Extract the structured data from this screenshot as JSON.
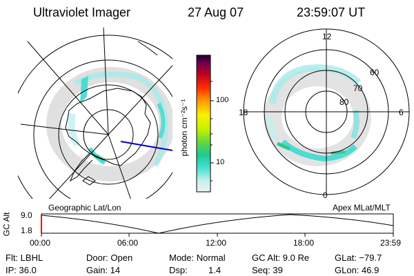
{
  "header": {
    "instrument": "Ultraviolet Imager",
    "date": "27 Aug 07",
    "time": "23:59:07 UT"
  },
  "colorbar": {
    "unit_label": "photon cm⁻²s⁻¹",
    "ticks": [
      "100",
      "10"
    ]
  },
  "left_map": {
    "caption": "Geographic Lat/Lon"
  },
  "right_map": {
    "caption": "Apex MLat/MLT",
    "clock_labels": {
      "top": "12",
      "left": "18",
      "right": "6",
      "bottom": "0"
    },
    "lat_labels": [
      "60",
      "70",
      "80"
    ]
  },
  "altitude_plot": {
    "ylabel": "GC Alt",
    "y_ticks": [
      "9.0",
      "1.8"
    ],
    "x_ticks": [
      "00:00",
      "06:00",
      "12:00",
      "18:00",
      "23:59"
    ]
  },
  "info": {
    "row1": {
      "filter": "Flt: LBHL",
      "door": "Door: Open",
      "mode": "Mode: Normal",
      "gc_alt": "GC Alt: 9.0 Re",
      "glat": "GLat: −79.7"
    },
    "row2": {
      "ip": "IP: 36.0",
      "gain": "Gain: 14",
      "dsp_label": "Dsp:",
      "dsp_value": "1.4",
      "seq": "Seq: 39",
      "glon": "GLon:  46.9"
    }
  },
  "colors": {
    "colorbar_stops": [
      "#e8e8e8",
      "#b0f0f0",
      "#40e0d0",
      "#30c890",
      "#80e020",
      "#e8f000",
      "#ffa000",
      "#ff4000",
      "#c00020",
      "#800040",
      "#200030"
    ],
    "aurora": "#40d8d0",
    "track": "#0000c0",
    "marker": "#ff0000"
  }
}
